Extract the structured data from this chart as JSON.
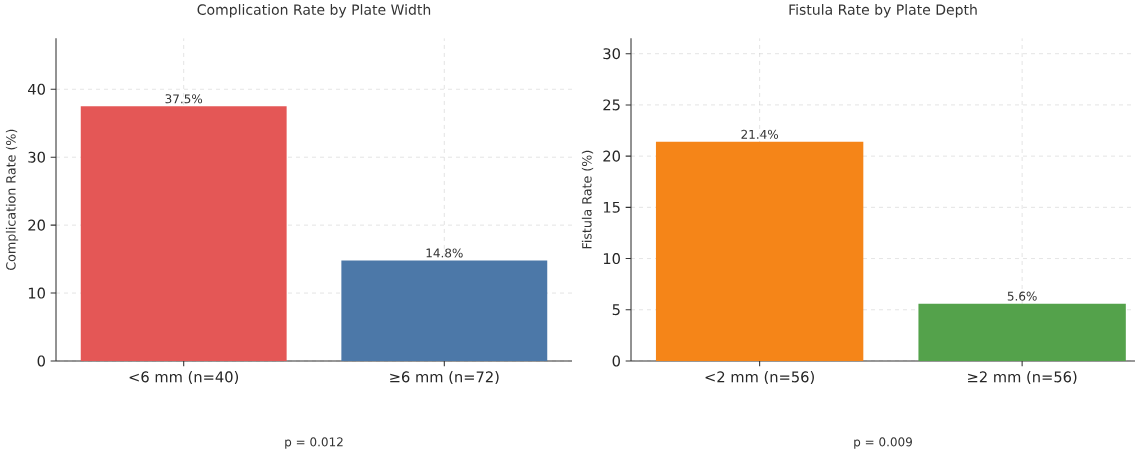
{
  "chart_data": [
    {
      "type": "bar",
      "title": "Complication Rate by Plate Width",
      "ylabel": "Complication Rate (%)",
      "categories": [
        "<6 mm (n=40)",
        "≥6 mm (n=72)"
      ],
      "values": [
        37.5,
        14.8
      ],
      "colors": [
        "#e45756",
        "#4c78a8"
      ],
      "value_labels": [
        "37.5%",
        "14.8%"
      ],
      "ylim": [
        0,
        47.5
      ],
      "yticks": [
        0,
        10,
        20,
        30,
        40
      ],
      "grid": true,
      "annotations": [
        "p = 0.012"
      ]
    },
    {
      "type": "bar",
      "title": "Fistula Rate by Plate Depth",
      "ylabel": "Fistula Rate (%)",
      "categories": [
        "<2 mm (n=56)",
        "≥2 mm (n=56)"
      ],
      "values": [
        21.4,
        5.6
      ],
      "colors": [
        "#f58518",
        "#54a24b"
      ],
      "value_labels": [
        "21.4%",
        "5.6%"
      ],
      "ylim": [
        0,
        31.5
      ],
      "yticks": [
        0,
        5,
        10,
        15,
        20,
        25,
        30
      ],
      "grid": true,
      "annotations": [
        "p = 0.009"
      ]
    }
  ]
}
